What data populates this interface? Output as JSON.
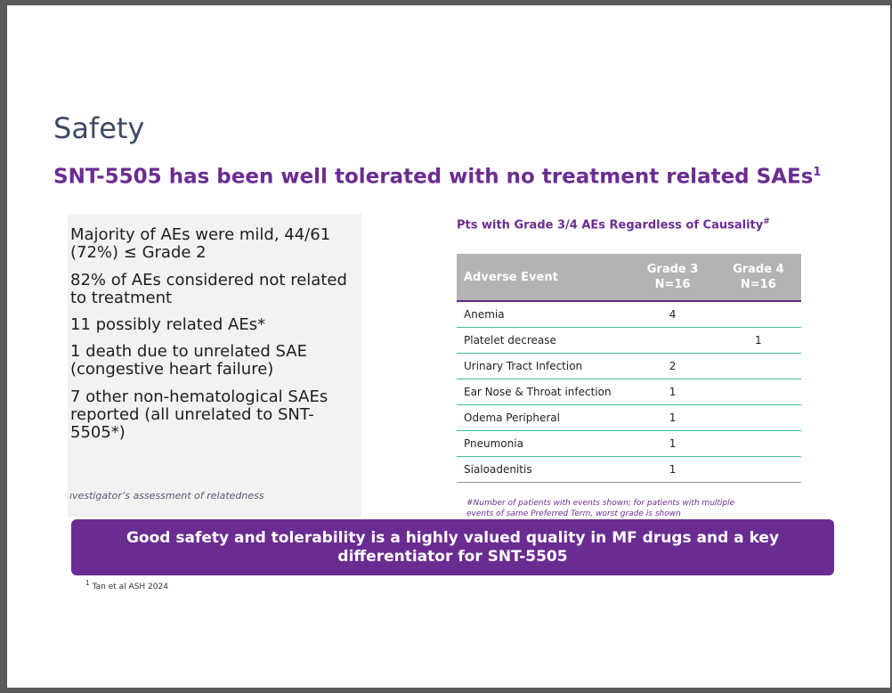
{
  "slide": {
    "title": "Safety",
    "subtitle": "SNT-5505 has been well tolerated with no treatment related SAEs",
    "subtitle_ref": "1"
  },
  "bullets": [
    "Majority of AEs were mild, 44/61 (72%) ≤ Grade 2",
    "82% of AEs considered not related to treatment",
    "11 possibly related AEs*",
    "1 death due to unrelated SAE (congestive heart failure)",
    "7 other non-hematological SAEs reported (all unrelated to SNT-5505*)"
  ],
  "bullet_note": "ıvestigator’s assessment of relatedness",
  "table": {
    "title": "Pts with Grade 3/4 AEs Regardless of Causality",
    "title_mark": "#",
    "headers": {
      "event": "Adverse Event",
      "g3_line1": "Grade 3",
      "g3_line2": "N=16",
      "g4_line1": "Grade 4",
      "g4_line2": "N=16"
    },
    "rows": [
      {
        "event": "Anemia",
        "g3": "4",
        "g4": ""
      },
      {
        "event": "Platelet decrease",
        "g3": "",
        "g4": "1"
      },
      {
        "event": "Urinary Tract Infection",
        "g3": "2",
        "g4": ""
      },
      {
        "event": "Ear Nose & Throat infection",
        "g3": "1",
        "g4": ""
      },
      {
        "event": "Odema Peripheral",
        "g3": "1",
        "g4": ""
      },
      {
        "event": "Pneumonia",
        "g3": "1",
        "g4": ""
      },
      {
        "event": "Sialoadenitis",
        "g3": "1",
        "g4": ""
      }
    ],
    "footnote": "#Number of patients with events shown; for patients with multiple events of same Preferred Term, worst grade is shown"
  },
  "banner": "Good safety and tolerability is a highly valued quality in MF drugs and a key differentiator for SNT-5505",
  "reference": {
    "mark": "1",
    "text": "Tan et al ASH 2024"
  },
  "colors": {
    "purple": "#6b2d91",
    "title": "#3b4a64",
    "table_header": "#b3b3b3",
    "row_divider": "#3fbf9a"
  }
}
